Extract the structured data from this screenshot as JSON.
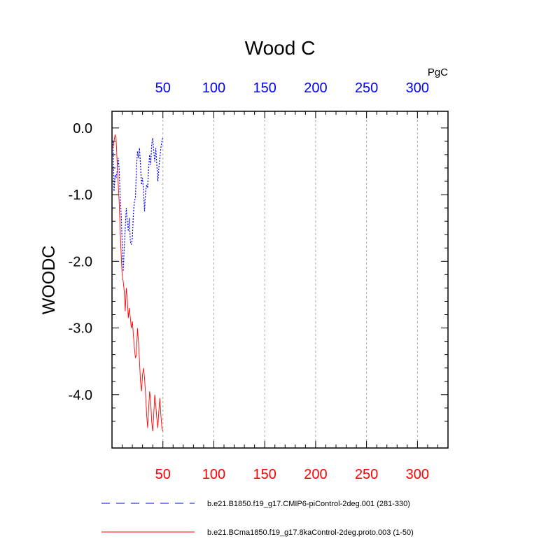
{
  "chart_data": {
    "type": "line",
    "title": "Wood C",
    "ylabel": "WOODC",
    "units": "PgC",
    "xlim": [
      0,
      330
    ],
    "ylim": [
      -4.8,
      0.25
    ],
    "grid_x": true,
    "grid_y": false,
    "legend_position": "bottom",
    "x_ticks_top": {
      "values": [
        50,
        100,
        150,
        200,
        250,
        300
      ],
      "labels": [
        "50",
        "100",
        "150",
        "200",
        "250",
        "300"
      ],
      "color": "#0000ff"
    },
    "x_ticks_bottom": {
      "values": [
        50,
        100,
        150,
        200,
        250,
        300
      ],
      "labels": [
        "50",
        "100",
        "150",
        "200",
        "250",
        "300"
      ],
      "color": "#ff0000"
    },
    "y_ticks": {
      "values": [
        0,
        -1,
        -2,
        -3,
        -4
      ],
      "labels": [
        "0.0",
        "-1.0",
        "-2.0",
        "-3.0",
        "-4.0"
      ]
    },
    "series": [
      {
        "name": "b.e21.B1850.f19_g17.CMIP6-piControl-2deg.001 (281-330)",
        "color": "#0000ff",
        "dash": "dashed",
        "x": [
          1,
          2,
          3,
          4,
          5,
          6,
          7,
          8,
          9,
          10,
          11,
          12,
          13,
          14,
          15,
          16,
          17,
          18,
          19,
          20,
          21,
          22,
          23,
          24,
          25,
          26,
          27,
          28,
          29,
          30,
          31,
          32,
          33,
          34,
          35,
          36,
          37,
          38,
          39,
          40,
          41,
          42,
          43,
          44,
          45,
          46,
          47,
          48,
          49,
          50
        ],
        "y": [
          -0.2,
          -0.95,
          -0.7,
          -0.75,
          -0.65,
          -0.45,
          -0.6,
          -1.0,
          -1.3,
          -1.7,
          -2.15,
          -1.8,
          -1.5,
          -1.2,
          -1.4,
          -1.55,
          -1.35,
          -1.7,
          -1.75,
          -1.65,
          -1.3,
          -1.1,
          -1.05,
          -0.6,
          -0.35,
          -0.45,
          -0.3,
          -0.55,
          -0.85,
          -0.75,
          -0.95,
          -1.25,
          -0.95,
          -0.85,
          -0.9,
          -0.6,
          -0.4,
          -0.55,
          -0.25,
          -0.15,
          -0.35,
          -0.5,
          -0.3,
          -0.55,
          -0.8,
          -0.6,
          -0.45,
          -0.3,
          -0.2,
          -0.15
        ]
      },
      {
        "name": "b.e21.BCma1850.f19_g17.8kaControl-2deg.proto.003 (1-50)",
        "color": "#ff0000",
        "dash": "solid",
        "x": [
          1,
          2,
          3,
          4,
          5,
          6,
          7,
          8,
          9,
          10,
          11,
          12,
          13,
          14,
          15,
          16,
          17,
          18,
          19,
          20,
          21,
          22,
          23,
          24,
          25,
          26,
          27,
          28,
          29,
          30,
          31,
          32,
          33,
          34,
          35,
          36,
          37,
          38,
          39,
          40,
          41,
          42,
          43,
          44,
          45,
          46,
          47,
          48,
          49,
          50
        ],
        "y": [
          -0.3,
          -0.2,
          -0.1,
          -0.15,
          -0.5,
          -0.8,
          -1.1,
          -1.5,
          -1.9,
          -2.2,
          -2.3,
          -2.45,
          -2.75,
          -2.4,
          -2.55,
          -2.85,
          -2.7,
          -2.85,
          -3.0,
          -2.9,
          -3.1,
          -3.3,
          -3.45,
          -3.4,
          -3.0,
          -3.2,
          -3.5,
          -3.8,
          -3.95,
          -3.7,
          -3.6,
          -3.75,
          -4.0,
          -4.3,
          -4.5,
          -4.2,
          -3.95,
          -4.1,
          -4.4,
          -4.55,
          -4.3,
          -4.0,
          -4.15,
          -4.35,
          -4.5,
          -4.25,
          -4.05,
          -4.3,
          -4.5,
          -4.55
        ]
      }
    ]
  }
}
